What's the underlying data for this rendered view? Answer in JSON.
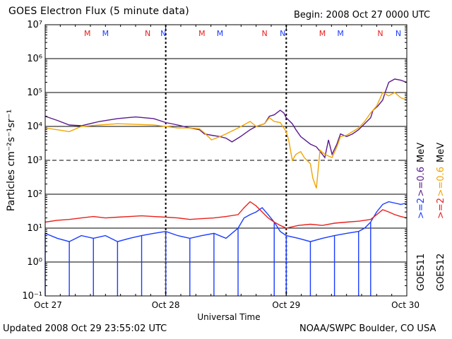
{
  "header": {
    "title": "GOES Electron Flux (5 minute data)",
    "begin": "Begin: 2008 Oct 27 0000 UTC"
  },
  "footer": {
    "updated": "Updated 2008 Oct 29 23:55:02 UTC",
    "credit": "NOAA/SWPC Boulder, CO USA"
  },
  "colors": {
    "goes11_high": "#5a1a8c",
    "goes12_high": "#f0a500",
    "goes11_low": "#1a3cff",
    "goes12_low": "#e8201c",
    "gridline": "#000000"
  },
  "chart_data": {
    "type": "line",
    "title": "GOES Electron Flux (5 minute data)",
    "xlabel": "Universal Time",
    "ylabel": "Particles cm⁻²s⁻¹sr⁻¹",
    "y_scale": "log",
    "ylim": [
      0.1,
      10000000
    ],
    "xlim": [
      "Oct 27",
      "Oct 30"
    ],
    "x_ticks": [
      "Oct 27",
      "Oct 28",
      "Oct 29",
      "Oct 30"
    ],
    "y_ticks": [
      "10⁻¹",
      "10⁰",
      "10¹",
      "10²",
      "10³",
      "10⁴",
      "10⁵",
      "10⁶",
      "10⁷"
    ],
    "grid": "horizontal",
    "markers": [
      {
        "label": "M",
        "day": 0.35,
        "color": "#e8201c"
      },
      {
        "label": "M",
        "day": 0.5,
        "color": "#1a3cff"
      },
      {
        "label": "N",
        "day": 0.85,
        "color": "#e8201c"
      },
      {
        "label": "N",
        "day": 0.98,
        "color": "#1a3cff"
      },
      {
        "label": "M",
        "day": 1.3,
        "color": "#e8201c"
      },
      {
        "label": "M",
        "day": 1.45,
        "color": "#1a3cff"
      },
      {
        "label": "N",
        "day": 1.82,
        "color": "#e8201c"
      },
      {
        "label": "N",
        "day": 1.97,
        "color": "#1a3cff"
      },
      {
        "label": "M",
        "day": 2.3,
        "color": "#e8201c"
      },
      {
        "label": "M",
        "day": 2.45,
        "color": "#1a3cff"
      },
      {
        "label": "N",
        "day": 2.78,
        "color": "#e8201c"
      },
      {
        "label": "N",
        "day": 2.93,
        "color": "#1a3cff"
      }
    ],
    "legend": {
      "energy_labels": [
        {
          "text": ">=2",
          "color": "#1a3cff"
        },
        {
          "text": ">=0.6",
          "color": "#5a1a8c"
        },
        {
          "text": "MeV",
          "color": "#000000"
        },
        {
          "text": ">=2",
          "color": "#e8201c"
        },
        {
          "text": ">=0.6",
          "color": "#f0a500"
        },
        {
          "text": "MeV",
          "color": "#000000"
        }
      ],
      "satellites": [
        "GOES11",
        "GOES12"
      ]
    },
    "series": [
      {
        "name": "GOES11 >=0.6 MeV",
        "color": "#5a1a8c",
        "points": [
          [
            0,
            20000
          ],
          [
            0.1,
            15000
          ],
          [
            0.2,
            11000
          ],
          [
            0.3,
            10500
          ],
          [
            0.45,
            14000
          ],
          [
            0.6,
            17000
          ],
          [
            0.75,
            19000
          ],
          [
            0.9,
            17000
          ],
          [
            1.0,
            13000
          ],
          [
            1.1,
            11000
          ],
          [
            1.2,
            9000
          ],
          [
            1.28,
            8000
          ],
          [
            1.32,
            6000
          ],
          [
            1.38,
            5500
          ],
          [
            1.45,
            5000
          ],
          [
            1.5,
            4500
          ],
          [
            1.55,
            3500
          ],
          [
            1.62,
            5000
          ],
          [
            1.7,
            8000
          ],
          [
            1.75,
            10000
          ],
          [
            1.82,
            12000
          ],
          [
            1.86,
            20000
          ],
          [
            1.9,
            22000
          ],
          [
            1.95,
            30000
          ],
          [
            1.98,
            25000
          ],
          [
            2.0,
            18000
          ],
          [
            2.05,
            12000
          ],
          [
            2.08,
            8000
          ],
          [
            2.12,
            5000
          ],
          [
            2.2,
            3000
          ],
          [
            2.25,
            2500
          ],
          [
            2.3,
            1500
          ],
          [
            2.32,
            1200
          ],
          [
            2.35,
            4000
          ],
          [
            2.38,
            1500
          ],
          [
            2.42,
            3000
          ],
          [
            2.45,
            6000
          ],
          [
            2.5,
            5000
          ],
          [
            2.55,
            6000
          ],
          [
            2.6,
            8000
          ],
          [
            2.65,
            12000
          ],
          [
            2.7,
            18000
          ],
          [
            2.72,
            30000
          ],
          [
            2.76,
            40000
          ],
          [
            2.8,
            60000
          ],
          [
            2.82,
            100000
          ],
          [
            2.85,
            200000
          ],
          [
            2.9,
            250000
          ],
          [
            2.95,
            230000
          ],
          [
            3.0,
            200000
          ]
        ]
      },
      {
        "name": "GOES12 >=0.6 MeV",
        "color": "#f0a500",
        "points": [
          [
            0,
            9000
          ],
          [
            0.1,
            8000
          ],
          [
            0.2,
            7000
          ],
          [
            0.3,
            10000
          ],
          [
            0.45,
            11000
          ],
          [
            0.6,
            12000
          ],
          [
            0.75,
            11500
          ],
          [
            0.9,
            11000
          ],
          [
            1.0,
            10000
          ],
          [
            1.1,
            9000
          ],
          [
            1.2,
            9000
          ],
          [
            1.28,
            8500
          ],
          [
            1.32,
            6500
          ],
          [
            1.38,
            4000
          ],
          [
            1.45,
            5000
          ],
          [
            1.5,
            6000
          ],
          [
            1.6,
            9000
          ],
          [
            1.7,
            14000
          ],
          [
            1.75,
            10000
          ],
          [
            1.82,
            12000
          ],
          [
            1.86,
            18000
          ],
          [
            1.9,
            14000
          ],
          [
            1.95,
            13000
          ],
          [
            2.0,
            7000
          ],
          [
            2.02,
            4000
          ],
          [
            2.05,
            1000
          ],
          [
            2.08,
            1500
          ],
          [
            2.12,
            1800
          ],
          [
            2.15,
            1200
          ],
          [
            2.2,
            800
          ],
          [
            2.22,
            300
          ],
          [
            2.25,
            150
          ],
          [
            2.28,
            2000
          ],
          [
            2.32,
            1500
          ],
          [
            2.38,
            1200
          ],
          [
            2.42,
            2500
          ],
          [
            2.45,
            5000
          ],
          [
            2.5,
            5500
          ],
          [
            2.55,
            7000
          ],
          [
            2.6,
            9000
          ],
          [
            2.65,
            14000
          ],
          [
            2.7,
            25000
          ],
          [
            2.75,
            40000
          ],
          [
            2.8,
            100000
          ],
          [
            2.85,
            80000
          ],
          [
            2.9,
            100000
          ],
          [
            2.95,
            70000
          ],
          [
            3.0,
            60000
          ]
        ]
      },
      {
        "name": "GOES11 >=2 MeV",
        "color": "#1a3cff",
        "points": [
          [
            0,
            7
          ],
          [
            0.1,
            5
          ],
          [
            0.2,
            4
          ],
          [
            0.3,
            6
          ],
          [
            0.4,
            5
          ],
          [
            0.5,
            6
          ],
          [
            0.6,
            4
          ],
          [
            0.7,
            5
          ],
          [
            0.8,
            6
          ],
          [
            0.9,
            7
          ],
          [
            1.0,
            8
          ],
          [
            1.1,
            6
          ],
          [
            1.2,
            5
          ],
          [
            1.3,
            6
          ],
          [
            1.4,
            7
          ],
          [
            1.5,
            5
          ],
          [
            1.6,
            10
          ],
          [
            1.65,
            20
          ],
          [
            1.7,
            25
          ],
          [
            1.75,
            30
          ],
          [
            1.8,
            40
          ],
          [
            1.85,
            25
          ],
          [
            1.9,
            15
          ],
          [
            1.95,
            8
          ],
          [
            2.0,
            6
          ],
          [
            2.1,
            5
          ],
          [
            2.2,
            4
          ],
          [
            2.3,
            5
          ],
          [
            2.4,
            6
          ],
          [
            2.5,
            7
          ],
          [
            2.6,
            8
          ],
          [
            2.65,
            10
          ],
          [
            2.7,
            15
          ],
          [
            2.75,
            30
          ],
          [
            2.8,
            50
          ],
          [
            2.85,
            60
          ],
          [
            2.9,
            55
          ],
          [
            2.95,
            50
          ],
          [
            3.0,
            55
          ]
        ],
        "dropouts_to": 0.1
      },
      {
        "name": "GOES12 >=2 MeV",
        "color": "#e8201c",
        "points": [
          [
            0,
            15
          ],
          [
            0.1,
            17
          ],
          [
            0.2,
            18
          ],
          [
            0.3,
            20
          ],
          [
            0.4,
            22
          ],
          [
            0.5,
            20
          ],
          [
            0.6,
            21
          ],
          [
            0.7,
            22
          ],
          [
            0.8,
            23
          ],
          [
            0.9,
            22
          ],
          [
            1.0,
            21
          ],
          [
            1.1,
            20
          ],
          [
            1.2,
            18
          ],
          [
            1.3,
            19
          ],
          [
            1.4,
            20
          ],
          [
            1.5,
            22
          ],
          [
            1.6,
            25
          ],
          [
            1.65,
            40
          ],
          [
            1.7,
            60
          ],
          [
            1.75,
            45
          ],
          [
            1.8,
            30
          ],
          [
            1.85,
            20
          ],
          [
            1.9,
            15
          ],
          [
            1.95,
            12
          ],
          [
            2.0,
            10
          ],
          [
            2.1,
            12
          ],
          [
            2.2,
            13
          ],
          [
            2.3,
            12
          ],
          [
            2.4,
            14
          ],
          [
            2.5,
            15
          ],
          [
            2.6,
            16
          ],
          [
            2.7,
            18
          ],
          [
            2.75,
            25
          ],
          [
            2.8,
            35
          ],
          [
            2.85,
            30
          ],
          [
            2.9,
            25
          ],
          [
            2.95,
            22
          ],
          [
            3.0,
            20
          ]
        ]
      }
    ]
  }
}
